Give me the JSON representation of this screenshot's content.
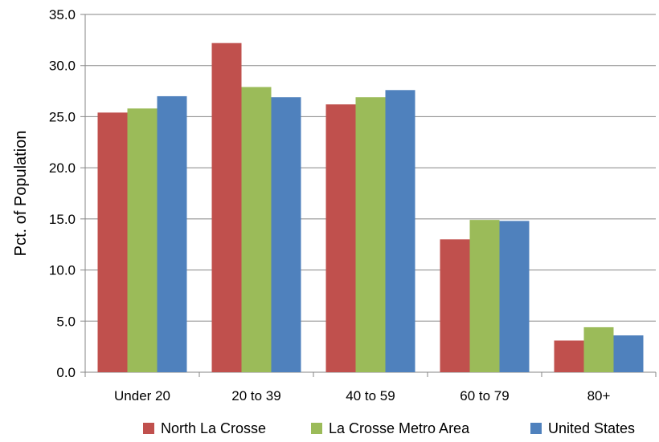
{
  "chart_data": {
    "type": "bar",
    "title": "",
    "xlabel": "",
    "ylabel": "Pct. of Population",
    "categories": [
      "Under 20",
      "20 to 39",
      "40 to 59",
      "60 to 79",
      "80+"
    ],
    "series": [
      {
        "name": "North La Crosse",
        "color": "#c0504d",
        "values": [
          25.4,
          32.2,
          26.2,
          13.0,
          3.1
        ]
      },
      {
        "name": "La Crosse Metro Area",
        "color": "#9bbb59",
        "values": [
          25.8,
          27.9,
          26.9,
          14.9,
          4.4
        ]
      },
      {
        "name": "United States",
        "color": "#4f81bd",
        "values": [
          27.0,
          26.9,
          27.6,
          14.8,
          3.6
        ]
      }
    ],
    "ylim": [
      0,
      35
    ],
    "y_ticks": [
      "0.0",
      "5.0",
      "10.0",
      "15.0",
      "20.0",
      "25.0",
      "30.0",
      "35.0"
    ],
    "grid": true,
    "legend_position": "bottom"
  }
}
